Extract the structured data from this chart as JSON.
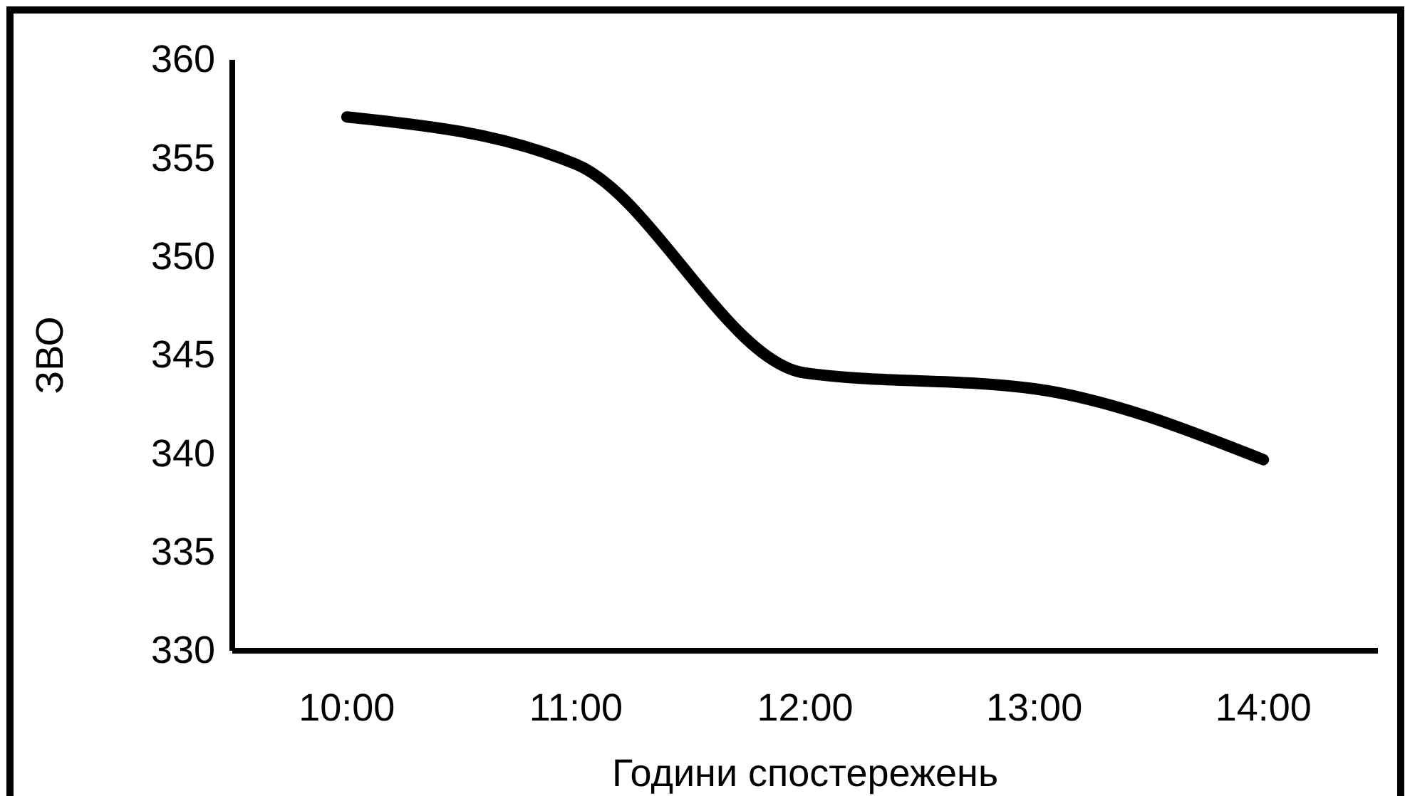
{
  "chart_data": {
    "type": "line",
    "xlabel": "Години спостережень",
    "ylabel": "ЗВО",
    "categories": [
      "10:00",
      "11:00",
      "12:00",
      "13:00",
      "14:00"
    ],
    "series": [
      {
        "color": "#000000",
        "values": [
          357.1,
          354.7,
          344.1,
          343.3,
          339.7
        ]
      }
    ],
    "ylim": [
      330,
      360
    ],
    "yticks": [
      330,
      335,
      340,
      345,
      350,
      355,
      360
    ],
    "grid": false,
    "marker": "none",
    "line_style": "solid"
  }
}
